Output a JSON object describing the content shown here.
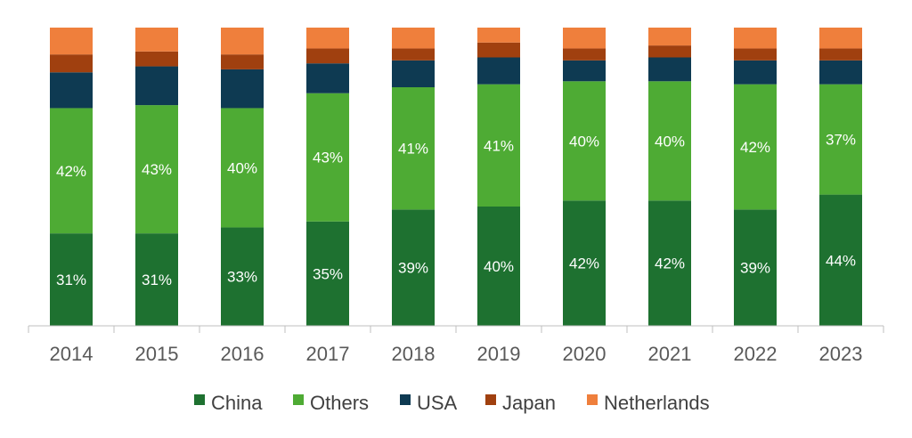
{
  "chart_data": {
    "type": "bar",
    "stacked": true,
    "normalized": true,
    "categories": [
      "2014",
      "2015",
      "2016",
      "2017",
      "2018",
      "2019",
      "2020",
      "2021",
      "2022",
      "2023"
    ],
    "series": [
      {
        "name": "China",
        "color": "#1e7130",
        "values": [
          31,
          31,
          33,
          35,
          39,
          40,
          42,
          42,
          39,
          44
        ],
        "labels": [
          "31%",
          "31%",
          "33%",
          "35%",
          "39%",
          "40%",
          "42%",
          "42%",
          "39%",
          "44%"
        ]
      },
      {
        "name": "Others",
        "color": "#4eab34",
        "values": [
          42,
          43,
          40,
          43,
          41,
          41,
          40,
          40,
          42,
          37
        ],
        "labels": [
          "42%",
          "43%",
          "40%",
          "43%",
          "41%",
          "41%",
          "40%",
          "40%",
          "42%",
          "37%"
        ]
      },
      {
        "name": "USA",
        "color": "#0e3a52",
        "values": [
          12,
          13,
          13,
          10,
          9,
          9,
          7,
          8,
          8,
          8
        ],
        "labels": []
      },
      {
        "name": "Japan",
        "color": "#a0400f",
        "values": [
          6,
          5,
          5,
          5,
          4,
          5,
          4,
          4,
          4,
          4
        ],
        "labels": []
      },
      {
        "name": "Netherlands",
        "color": "#ef7f3c",
        "values": [
          9,
          8,
          9,
          7,
          7,
          5,
          7,
          6,
          7,
          7
        ],
        "labels": []
      }
    ],
    "ylim": [
      0,
      100
    ],
    "grid": false,
    "legend_position": "bottom"
  }
}
